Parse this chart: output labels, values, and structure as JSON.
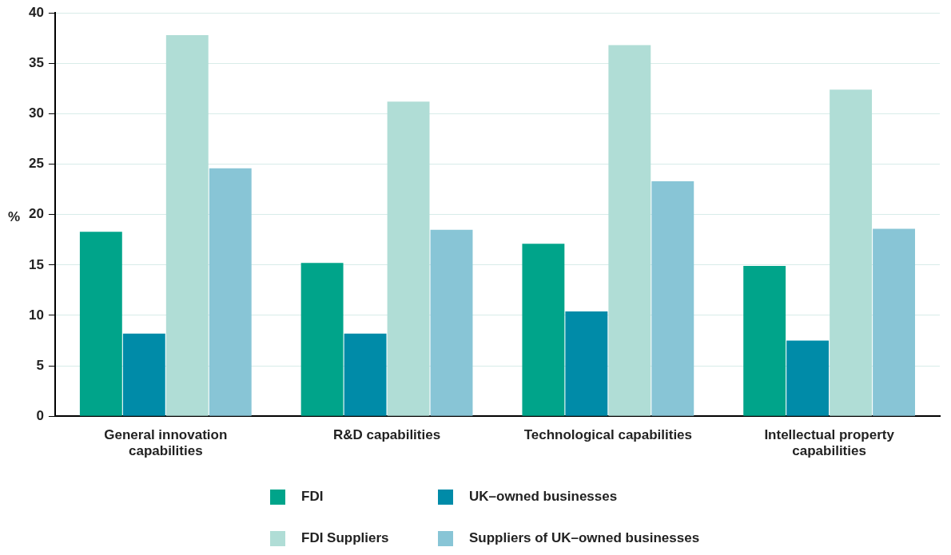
{
  "chart_data": {
    "type": "bar",
    "ylabel": "%",
    "categories": [
      "General innovation capabilities",
      "R&D capabilities",
      "Technological capabilities",
      "Intellectual property capabilities"
    ],
    "series": [
      {
        "name": "FDI",
        "color": "#00a48a",
        "values": [
          18.3,
          15.2,
          17.1,
          14.9
        ]
      },
      {
        "name": "UK–owned businesses",
        "color": "#008ba8",
        "values": [
          8.2,
          8.2,
          10.4,
          7.5
        ]
      },
      {
        "name": "FDI Suppliers",
        "color": "#b0ddd6",
        "values": [
          37.8,
          31.2,
          36.8,
          32.4
        ]
      },
      {
        "name": "Suppliers of UK–owned businesses",
        "color": "#88c5d6",
        "values": [
          24.6,
          18.5,
          23.3,
          18.6
        ]
      }
    ],
    "ylim": [
      0,
      40
    ],
    "yticks": [
      0,
      5,
      10,
      15,
      20,
      25,
      30,
      35,
      40
    ],
    "grid": "y",
    "legend": "bottom"
  }
}
